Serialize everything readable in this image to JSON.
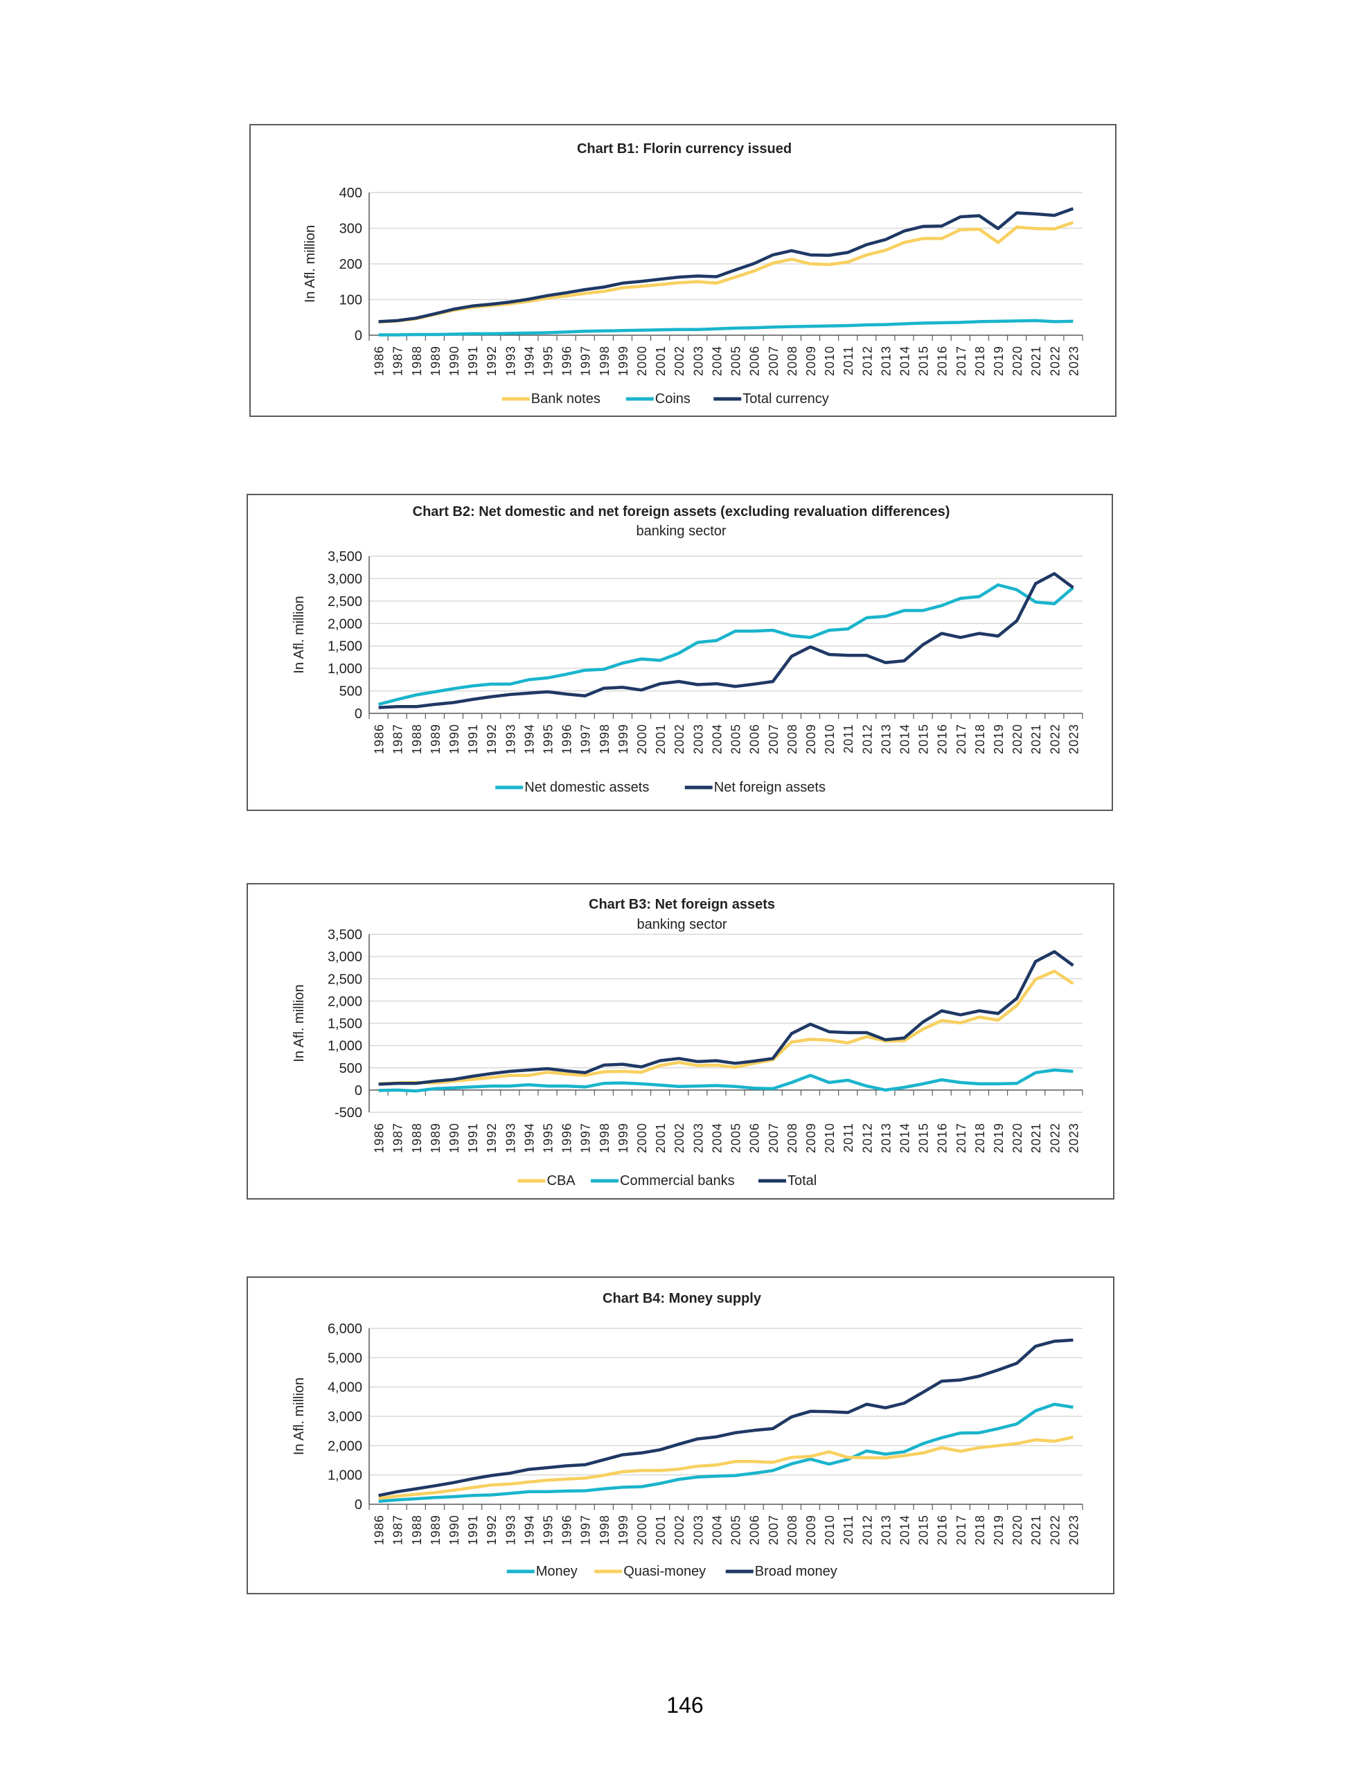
{
  "page_number": "146",
  "colors": {
    "navy": "#1f3864",
    "teal": "#1ab4cc",
    "yellow": "#f8d060",
    "grid": "#d9d9d9",
    "axis": "#595959"
  },
  "chart_data": [
    {
      "type": "line",
      "title": "Chart B1: Florin currency issued",
      "subtitle": "",
      "ylabel": "In Afl. million",
      "ylim": [
        0,
        400
      ],
      "yticks": [
        0,
        100,
        200,
        300,
        400
      ],
      "ytick_labels": [
        "0",
        "100",
        "200",
        "300",
        "400"
      ],
      "grid": true,
      "legend": "bottom",
      "categories": [
        "1986",
        "1987",
        "1988",
        "1989",
        "1990",
        "1991",
        "1992",
        "1993",
        "1994",
        "1995",
        "1996",
        "1997",
        "1998",
        "1999",
        "2000",
        "2001",
        "2002",
        "2003",
        "2004",
        "2005",
        "2006",
        "2007",
        "2008",
        "2009",
        "2010",
        "2011",
        "2012",
        "2013",
        "2014",
        "2015",
        "2016",
        "2017",
        "2018",
        "2019",
        "2020",
        "2021",
        "2022",
        "2023"
      ],
      "series": [
        {
          "name": "Bank notes",
          "color": "#f8d060",
          "values": [
            37,
            40,
            46,
            58,
            70,
            78,
            83,
            88,
            95,
            104,
            110,
            117,
            123,
            133,
            137,
            142,
            147,
            150,
            146,
            163,
            180,
            202,
            213,
            200,
            198,
            205,
            225,
            238,
            260,
            271,
            271,
            296,
            297,
            260,
            303,
            299,
            298,
            316
          ]
        },
        {
          "name": "Coins",
          "color": "#1ab4cc",
          "values": [
            1,
            1,
            2,
            2,
            3,
            4,
            4,
            5,
            6,
            7,
            9,
            11,
            12,
            13,
            14,
            15,
            16,
            16,
            18,
            20,
            21,
            23,
            24,
            25,
            26,
            27,
            29,
            30,
            32,
            34,
            35,
            36,
            38,
            39,
            40,
            41,
            38,
            39
          ]
        },
        {
          "name": "Total currency",
          "color": "#1f3864",
          "values": [
            38,
            41,
            48,
            60,
            73,
            82,
            87,
            93,
            101,
            111,
            119,
            128,
            135,
            146,
            151,
            157,
            163,
            166,
            164,
            183,
            201,
            225,
            237,
            225,
            224,
            232,
            254,
            268,
            292,
            305,
            306,
            332,
            335,
            299,
            343,
            340,
            336,
            355
          ]
        }
      ]
    },
    {
      "type": "line",
      "title": "Chart B2: Net domestic and net foreign assets (excluding revaluation differences)",
      "subtitle": "banking sector",
      "ylabel": "In Afl. million",
      "ylim": [
        0,
        3500
      ],
      "yticks": [
        0,
        500,
        1000,
        1500,
        2000,
        2500,
        3000,
        3500
      ],
      "ytick_labels": [
        "0",
        "500",
        "1,000",
        "1,500",
        "2,000",
        "2,500",
        "3,000",
        "3,500"
      ],
      "grid": true,
      "legend": "bottom",
      "categories": [
        "1986",
        "1987",
        "1988",
        "1989",
        "1990",
        "1991",
        "1992",
        "1993",
        "1994",
        "1995",
        "1996",
        "1997",
        "1998",
        "1999",
        "2000",
        "2001",
        "2002",
        "2003",
        "2004",
        "2005",
        "2006",
        "2007",
        "2008",
        "2009",
        "2010",
        "2011",
        "2012",
        "2013",
        "2014",
        "2015",
        "2016",
        "2017",
        "2018",
        "2019",
        "2020",
        "2021",
        "2022",
        "2023"
      ],
      "series": [
        {
          "name": "Net domestic assets",
          "color": "#1ab4cc",
          "values": [
            200,
            310,
            410,
            480,
            550,
            610,
            650,
            650,
            750,
            790,
            870,
            960,
            980,
            1120,
            1210,
            1180,
            1340,
            1580,
            1620,
            1830,
            1830,
            1850,
            1730,
            1690,
            1850,
            1880,
            2130,
            2160,
            2290,
            2290,
            2400,
            2560,
            2600,
            2860,
            2750,
            2480,
            2440,
            2800
          ]
        },
        {
          "name": "Net foreign assets",
          "color": "#1f3864",
          "values": [
            130,
            150,
            150,
            200,
            240,
            310,
            370,
            420,
            450,
            480,
            430,
            390,
            560,
            580,
            520,
            660,
            710,
            640,
            660,
            600,
            650,
            710,
            1270,
            1480,
            1310,
            1290,
            1290,
            1130,
            1170,
            1530,
            1780,
            1690,
            1780,
            1720,
            2060,
            2890,
            3110,
            2800
          ]
        }
      ]
    },
    {
      "type": "line",
      "title": "Chart B3: Net foreign assets",
      "subtitle": "banking sector",
      "ylabel": "In Afl. million",
      "ylim": [
        -500,
        3500
      ],
      "yticks": [
        -500,
        0,
        500,
        1000,
        1500,
        2000,
        2500,
        3000,
        3500
      ],
      "ytick_labels": [
        "-500",
        "0",
        "500",
        "1,000",
        "1,500",
        "2,000",
        "2,500",
        "3,000",
        "3,500"
      ],
      "grid": true,
      "legend": "bottom",
      "categories": [
        "1986",
        "1987",
        "1988",
        "1989",
        "1990",
        "1991",
        "1992",
        "1993",
        "1994",
        "1995",
        "1996",
        "1997",
        "1998",
        "1999",
        "2000",
        "2001",
        "2002",
        "2003",
        "2004",
        "2005",
        "2006",
        "2007",
        "2008",
        "2009",
        "2010",
        "2011",
        "2012",
        "2013",
        "2014",
        "2015",
        "2016",
        "2017",
        "2018",
        "2019",
        "2020",
        "2021",
        "2022",
        "2023"
      ],
      "series": [
        {
          "name": "CBA",
          "color": "#f8d060",
          "values": [
            140,
            160,
            170,
            160,
            200,
            240,
            280,
            330,
            330,
            400,
            360,
            330,
            410,
            420,
            400,
            550,
            620,
            550,
            560,
            510,
            600,
            680,
            1080,
            1140,
            1120,
            1060,
            1200,
            1100,
            1110,
            1370,
            1560,
            1510,
            1640,
            1570,
            1900,
            2490,
            2670,
            2390
          ]
        },
        {
          "name": "Commercial banks",
          "color": "#1ab4cc",
          "values": [
            -10,
            0,
            -20,
            30,
            50,
            70,
            90,
            90,
            120,
            90,
            90,
            70,
            150,
            160,
            140,
            110,
            80,
            90,
            100,
            80,
            40,
            30,
            170,
            330,
            170,
            220,
            90,
            0,
            60,
            140,
            230,
            170,
            140,
            140,
            150,
            390,
            450,
            420
          ]
        },
        {
          "name": "Total",
          "color": "#1f3864",
          "values": [
            130,
            150,
            150,
            200,
            240,
            310,
            370,
            420,
            450,
            480,
            430,
            390,
            560,
            580,
            520,
            660,
            710,
            640,
            660,
            600,
            650,
            710,
            1270,
            1480,
            1310,
            1290,
            1290,
            1130,
            1170,
            1530,
            1780,
            1690,
            1780,
            1720,
            2060,
            2890,
            3110,
            2800
          ]
        }
      ]
    },
    {
      "type": "line",
      "title": "Chart B4: Money supply",
      "subtitle": "",
      "ylabel": "In Afl. million",
      "ylim": [
        0,
        6000
      ],
      "yticks": [
        0,
        1000,
        2000,
        3000,
        4000,
        5000,
        6000
      ],
      "ytick_labels": [
        "0",
        "1,000",
        "2,000",
        "3,000",
        "4,000",
        "5,000",
        "6,000"
      ],
      "grid": true,
      "legend": "bottom",
      "categories": [
        "1986",
        "1987",
        "1988",
        "1989",
        "1990",
        "1991",
        "1992",
        "1993",
        "1994",
        "1995",
        "1996",
        "1997",
        "1998",
        "1999",
        "2000",
        "2001",
        "2002",
        "2003",
        "2004",
        "2005",
        "2006",
        "2007",
        "2008",
        "2009",
        "2010",
        "2011",
        "2012",
        "2013",
        "2014",
        "2015",
        "2016",
        "2017",
        "2018",
        "2019",
        "2020",
        "2021",
        "2022",
        "2023"
      ],
      "series": [
        {
          "name": "Money",
          "color": "#1ab4cc",
          "values": [
            100,
            150,
            190,
            230,
            260,
            300,
            320,
            370,
            430,
            430,
            450,
            460,
            530,
            580,
            600,
            710,
            850,
            930,
            960,
            980,
            1060,
            1150,
            1380,
            1540,
            1370,
            1530,
            1820,
            1710,
            1790,
            2070,
            2270,
            2430,
            2440,
            2580,
            2740,
            3190,
            3410,
            3310
          ]
        },
        {
          "name": "Quasi-money",
          "color": "#f8d060",
          "values": [
            200,
            280,
            340,
            400,
            480,
            570,
            660,
            690,
            760,
            820,
            860,
            890,
            990,
            1110,
            1150,
            1150,
            1200,
            1300,
            1340,
            1460,
            1460,
            1430,
            1600,
            1630,
            1790,
            1600,
            1590,
            1580,
            1660,
            1750,
            1930,
            1810,
            1930,
            2000,
            2070,
            2200,
            2150,
            2290
          ]
        },
        {
          "name": "Broad money",
          "color": "#1f3864",
          "values": [
            300,
            430,
            530,
            630,
            740,
            870,
            980,
            1060,
            1190,
            1250,
            1310,
            1350,
            1520,
            1690,
            1750,
            1860,
            2050,
            2230,
            2300,
            2440,
            2520,
            2580,
            2980,
            3170,
            3160,
            3130,
            3410,
            3290,
            3450,
            3820,
            4200,
            4240,
            4370,
            4580,
            4810,
            5390,
            5560,
            5600
          ]
        }
      ]
    }
  ]
}
